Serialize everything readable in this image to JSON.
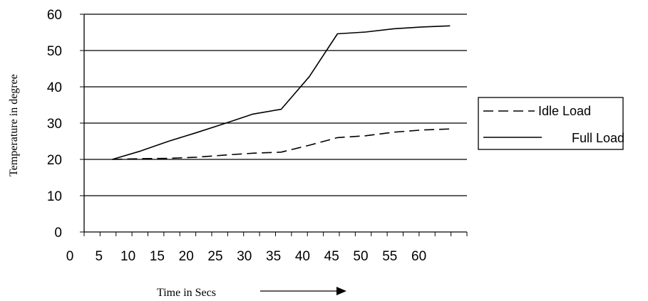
{
  "chart_data": {
    "type": "line",
    "title": "",
    "xlabel": "Time in Secs",
    "ylabel": "Temperature in degree",
    "x_ticks": [
      "0",
      "5",
      "10",
      "15",
      "20",
      "25",
      "30",
      "35",
      "40",
      "45",
      "50",
      "55",
      "60"
    ],
    "y_ticks": [
      "0",
      "10",
      "20",
      "30",
      "40",
      "50",
      "60"
    ],
    "ylim": [
      0,
      60
    ],
    "grid": "horizontal",
    "legend_position": "right",
    "x": [
      5,
      10,
      15,
      20,
      25,
      30,
      35,
      40,
      45,
      50,
      55,
      60,
      65
    ],
    "series": [
      {
        "name": "Idle Load",
        "style": "dashed",
        "values": [
          20,
          20.2,
          20.3,
          20.6,
          21.2,
          21.7,
          22,
          23.9,
          26,
          26.5,
          27.5,
          28.1,
          28.4
        ]
      },
      {
        "name": "Full Load",
        "style": "solid",
        "values": [
          20,
          22.3,
          25,
          27.4,
          29.9,
          32.5,
          33.8,
          42.8,
          54.6,
          55.1,
          56,
          56.5,
          56.8
        ]
      }
    ],
    "colors": {
      "line": "#000000",
      "grid": "#000000",
      "background": "#ffffff"
    }
  }
}
